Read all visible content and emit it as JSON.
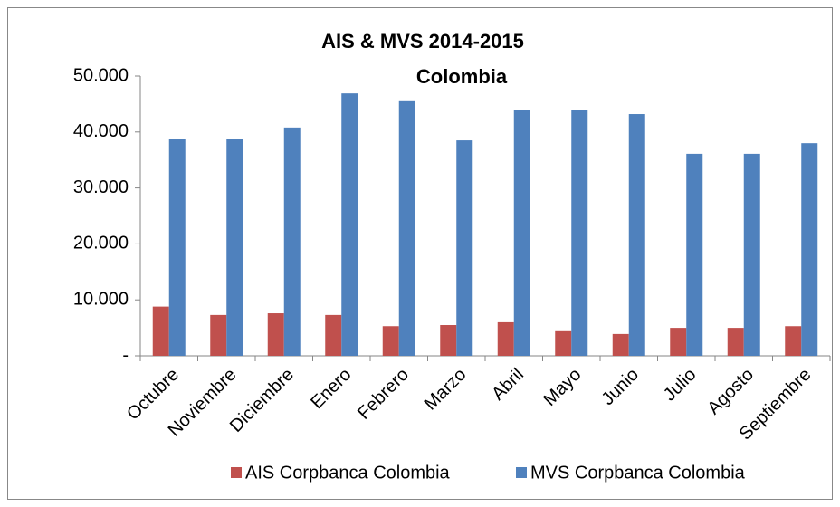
{
  "chart_data": {
    "type": "bar",
    "title": "AIS & MVS 2014-2015",
    "subtitle": "Colombia",
    "categories": [
      "Octubre",
      "Noviembre",
      "Diciembre",
      "Enero",
      "Febrero",
      "Marzo",
      "Abril",
      "Mayo",
      "Junio",
      "Julio",
      "Agosto",
      "Septiembre"
    ],
    "series": [
      {
        "name": "AIS Corpbanca Colombia",
        "color": "#c0504d",
        "values": [
          8800,
          7300,
          7600,
          7300,
          5300,
          5500,
          6000,
          4400,
          3900,
          5000,
          5000,
          5300
        ]
      },
      {
        "name": "MVS Corpbanca Colombia",
        "color": "#4f81bd",
        "values": [
          38800,
          38700,
          40800,
          46900,
          45500,
          38500,
          44000,
          44000,
          43200,
          36100,
          36100,
          38000
        ]
      }
    ],
    "ylim": [
      0,
      50000
    ],
    "yticks": [
      {
        "value": 0,
        "label": "-"
      },
      {
        "value": 10000,
        "label": "10.000"
      },
      {
        "value": 20000,
        "label": "20.000"
      },
      {
        "value": 30000,
        "label": "30.000"
      },
      {
        "value": 40000,
        "label": "40.000"
      },
      {
        "value": 50000,
        "label": "50.000"
      }
    ],
    "grid": false,
    "legend": "bottom"
  }
}
